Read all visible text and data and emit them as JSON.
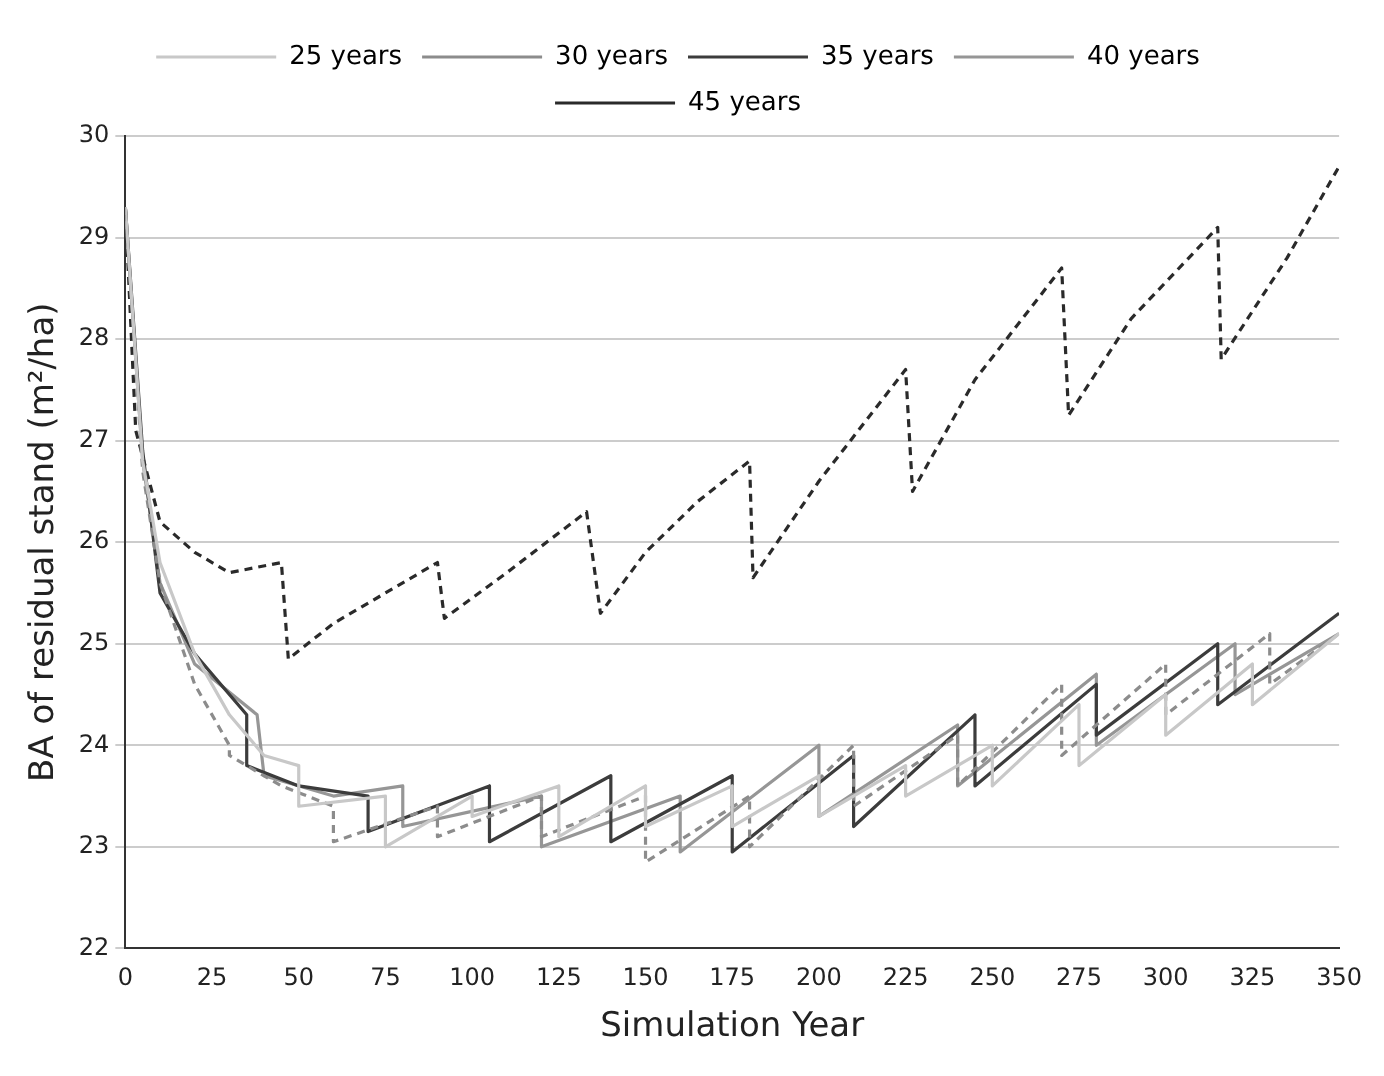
{
  "chart_data": {
    "type": "line",
    "xlabel": "Simulation Year",
    "ylabel": "BA of residual stand (m²/ha)",
    "xlim": [
      0,
      350
    ],
    "ylim": [
      22,
      30
    ],
    "xticks": [
      0,
      25,
      50,
      75,
      100,
      125,
      150,
      175,
      200,
      225,
      250,
      275,
      300,
      325,
      350
    ],
    "yticks": [
      22,
      23,
      24,
      25,
      26,
      27,
      28,
      29,
      30
    ],
    "grid": "y",
    "legend": "top",
    "marker": "none",
    "series": [
      {
        "name": "25 years",
        "color": "#c8c8c8",
        "line_style": "solid",
        "x": [
          0,
          5,
          10,
          20,
          30,
          40,
          50,
          50,
          75,
          75,
          100,
          100,
          125,
          125,
          150,
          150,
          175,
          175,
          200,
          200,
          225,
          225,
          250,
          250,
          275,
          275,
          300,
          300,
          325,
          325,
          350
        ],
        "values": [
          29.3,
          26.8,
          25.8,
          24.9,
          24.3,
          23.9,
          23.8,
          23.4,
          23.5,
          23.0,
          23.5,
          23.3,
          23.6,
          23.1,
          23.6,
          23.2,
          23.6,
          23.2,
          23.7,
          23.3,
          23.8,
          23.5,
          24.0,
          23.6,
          24.4,
          23.8,
          24.5,
          24.1,
          24.8,
          24.4,
          25.1
        ]
      },
      {
        "name": "30 years",
        "color": "#8c8c8c",
        "line_style": "dashed",
        "x": [
          0,
          5,
          10,
          20,
          30,
          30,
          45,
          60,
          60,
          90,
          90,
          120,
          120,
          150,
          150,
          180,
          180,
          210,
          210,
          240,
          240,
          270,
          270,
          300,
          300,
          330,
          330,
          350
        ],
        "values": [
          29.3,
          26.7,
          25.6,
          24.6,
          24.0,
          23.9,
          23.6,
          23.4,
          23.05,
          23.4,
          23.1,
          23.5,
          23.1,
          23.5,
          22.85,
          23.5,
          23.0,
          24.0,
          23.4,
          24.1,
          23.6,
          24.6,
          23.9,
          24.8,
          24.3,
          25.1,
          24.6,
          25.1
        ]
      },
      {
        "name": "35 years",
        "color": "#3c3c3c",
        "line_style": "solid",
        "x": [
          0,
          5,
          10,
          20,
          35,
          35,
          50,
          70,
          70,
          105,
          105,
          140,
          140,
          175,
          175,
          210,
          210,
          245,
          245,
          280,
          280,
          315,
          315,
          350
        ],
        "values": [
          29.3,
          26.9,
          25.5,
          24.9,
          24.3,
          23.8,
          23.6,
          23.5,
          23.15,
          23.6,
          23.05,
          23.7,
          23.05,
          23.7,
          22.95,
          23.9,
          23.2,
          24.3,
          23.6,
          24.6,
          24.1,
          25.0,
          24.4,
          25.3
        ]
      },
      {
        "name": "40 years",
        "color": "#969696",
        "line_style": "solid",
        "x": [
          0,
          5,
          10,
          20,
          38,
          40,
          60,
          80,
          80,
          120,
          120,
          160,
          160,
          200,
          200,
          240,
          240,
          280,
          280,
          320,
          320,
          350
        ],
        "values": [
          29.3,
          26.8,
          25.6,
          24.8,
          24.3,
          23.7,
          23.5,
          23.6,
          23.2,
          23.5,
          23.0,
          23.5,
          22.95,
          24.0,
          23.3,
          24.2,
          23.6,
          24.7,
          24.0,
          25.0,
          24.5,
          25.1
        ]
      },
      {
        "name": "45 years",
        "color": "#2a2a2a",
        "line_style": "dashed",
        "x": [
          0,
          3,
          10,
          20,
          30,
          45,
          47,
          60,
          75,
          90,
          92,
          110,
          133,
          137,
          150,
          165,
          180,
          181,
          200,
          225,
          227,
          245,
          270,
          272,
          290,
          315,
          316,
          335,
          350
        ],
        "values": [
          29.3,
          27.1,
          26.2,
          25.9,
          25.7,
          25.8,
          24.85,
          25.2,
          25.5,
          25.8,
          25.25,
          25.7,
          26.3,
          25.3,
          25.9,
          26.4,
          26.8,
          25.65,
          26.6,
          27.7,
          26.5,
          27.6,
          28.7,
          27.25,
          28.2,
          29.1,
          27.8,
          28.8,
          29.7
        ]
      }
    ]
  }
}
